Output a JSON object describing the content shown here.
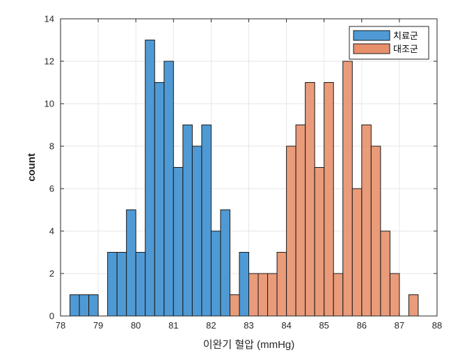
{
  "chart_data": {
    "type": "bar",
    "subtype": "histogram",
    "xlabel": "이완기 혈압 (mmHg)",
    "ylabel": "count",
    "xlim": [
      78,
      88
    ],
    "ylim": [
      0,
      14
    ],
    "xticks": [
      78,
      79,
      80,
      81,
      82,
      83,
      84,
      85,
      86,
      87,
      88
    ],
    "yticks": [
      0,
      2,
      4,
      6,
      8,
      10,
      12,
      14
    ],
    "grid": true,
    "legend_position": "top-right",
    "bin_width": 0.25,
    "series": [
      {
        "name": "치료군",
        "color": "#4f9ad4",
        "bins": [
          {
            "x0": 78.25,
            "count": 1
          },
          {
            "x0": 78.5,
            "count": 1
          },
          {
            "x0": 78.75,
            "count": 1
          },
          {
            "x0": 79.25,
            "count": 3
          },
          {
            "x0": 79.5,
            "count": 3
          },
          {
            "x0": 79.75,
            "count": 5
          },
          {
            "x0": 80.0,
            "count": 3
          },
          {
            "x0": 80.25,
            "count": 13
          },
          {
            "x0": 80.5,
            "count": 11
          },
          {
            "x0": 80.75,
            "count": 12
          },
          {
            "x0": 81.0,
            "count": 7
          },
          {
            "x0": 81.25,
            "count": 9
          },
          {
            "x0": 81.5,
            "count": 8
          },
          {
            "x0": 81.75,
            "count": 9
          },
          {
            "x0": 82.0,
            "count": 4
          },
          {
            "x0": 82.25,
            "count": 5
          },
          {
            "x0": 82.75,
            "count": 3
          }
        ]
      },
      {
        "name": "대조군",
        "color": "#e8906c",
        "bins": [
          {
            "x0": 82.5,
            "count": 1
          },
          {
            "x0": 83.0,
            "count": 2
          },
          {
            "x0": 83.25,
            "count": 2
          },
          {
            "x0": 83.5,
            "count": 2
          },
          {
            "x0": 83.75,
            "count": 3
          },
          {
            "x0": 84.0,
            "count": 8
          },
          {
            "x0": 84.25,
            "count": 9
          },
          {
            "x0": 84.5,
            "count": 11
          },
          {
            "x0": 84.75,
            "count": 7
          },
          {
            "x0": 85.0,
            "count": 11
          },
          {
            "x0": 85.25,
            "count": 2
          },
          {
            "x0": 85.5,
            "count": 12
          },
          {
            "x0": 85.75,
            "count": 6
          },
          {
            "x0": 86.0,
            "count": 9
          },
          {
            "x0": 86.25,
            "count": 8
          },
          {
            "x0": 86.5,
            "count": 4
          },
          {
            "x0": 86.75,
            "count": 2
          },
          {
            "x0": 87.25,
            "count": 1
          }
        ]
      }
    ]
  }
}
